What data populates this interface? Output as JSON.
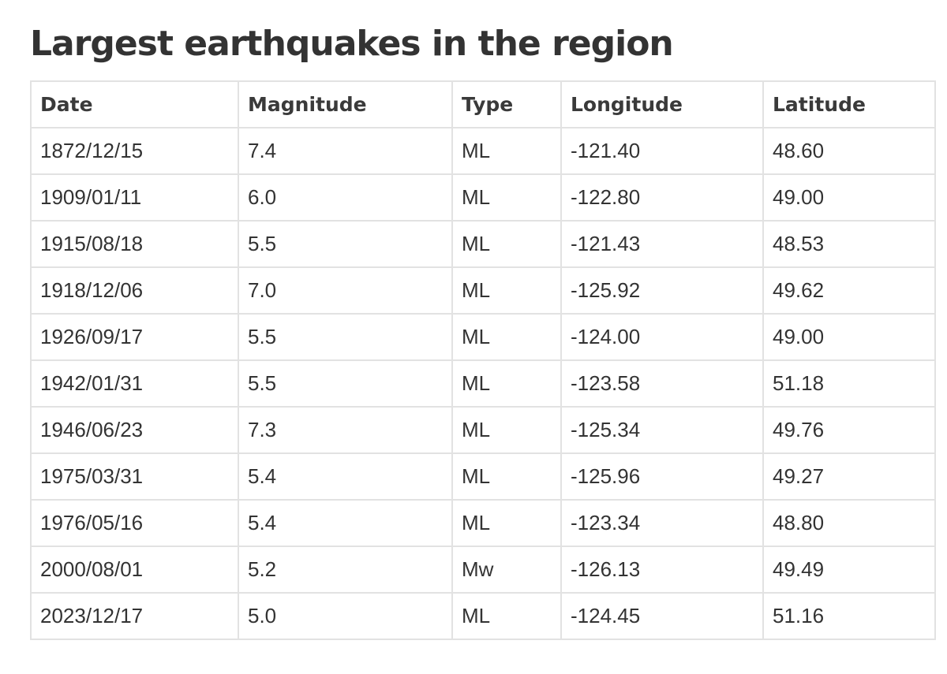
{
  "page": {
    "title": "Largest earthquakes in the region"
  },
  "table": {
    "columns": [
      "Date",
      "Magnitude",
      "Type",
      "Longitude",
      "Latitude"
    ],
    "rows": [
      [
        "1872/12/15",
        "7.4",
        "ML",
        "-121.40",
        "48.60"
      ],
      [
        "1909/01/11",
        "6.0",
        "ML",
        "-122.80",
        "49.00"
      ],
      [
        "1915/08/18",
        "5.5",
        "ML",
        "-121.43",
        "48.53"
      ],
      [
        "1918/12/06",
        "7.0",
        "ML",
        "-125.92",
        "49.62"
      ],
      [
        "1926/09/17",
        "5.5",
        "ML",
        "-124.00",
        "49.00"
      ],
      [
        "1942/01/31",
        "5.5",
        "ML",
        "-123.58",
        "51.18"
      ],
      [
        "1946/06/23",
        "7.3",
        "ML",
        "-125.34",
        "49.76"
      ],
      [
        "1975/03/31",
        "5.4",
        "ML",
        "-125.96",
        "49.27"
      ],
      [
        "1976/05/16",
        "5.4",
        "ML",
        "-123.34",
        "48.80"
      ],
      [
        "2000/08/01",
        "5.2",
        "Mw",
        "-126.13",
        "49.49"
      ],
      [
        "2023/12/17",
        "5.0",
        "ML",
        "-124.45",
        "51.16"
      ]
    ]
  },
  "colors": {
    "text": "#333333",
    "border": "#e2e2e2",
    "background": "#ffffff"
  }
}
